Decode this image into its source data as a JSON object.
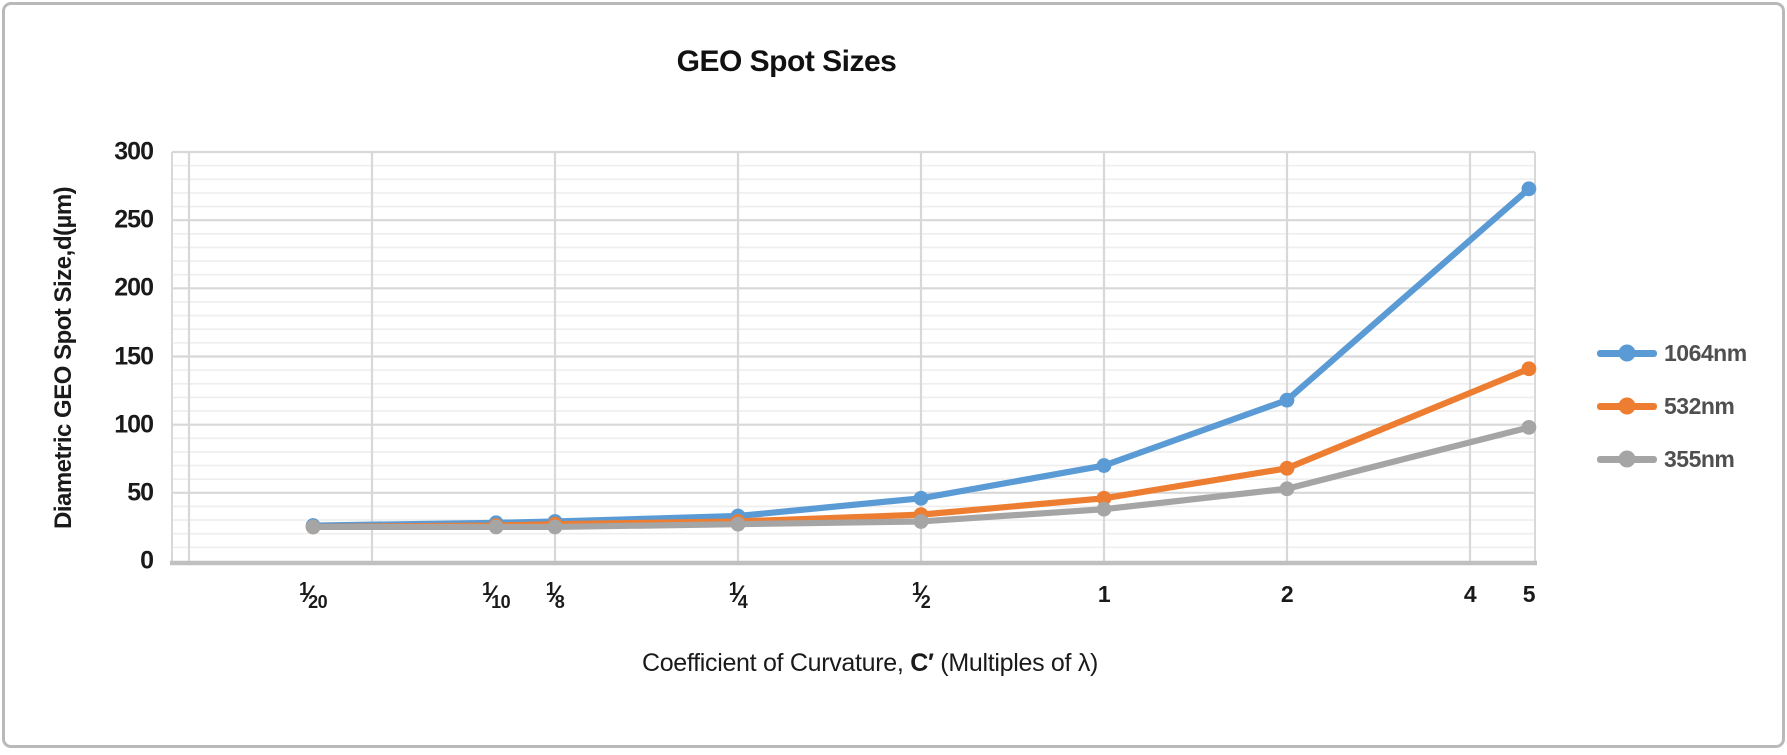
{
  "chart_data": {
    "type": "line",
    "title": "GEO Spot Sizes",
    "ylabel_parts": [
      {
        "text": "Diametric GEO Spot Size, ",
        "bold": false
      },
      {
        "text": "d",
        "bold": true
      },
      {
        "text": " (µm)",
        "bold": false
      }
    ],
    "xlabel_parts": [
      {
        "text": "Coefficient of Curvature, ",
        "bold": false
      },
      {
        "text": "C′",
        "bold": true
      },
      {
        "text": " (Multiples of λ)",
        "bold": false
      }
    ],
    "ylim": [
      0,
      300
    ],
    "y_major_step": 50,
    "y_minor_step": 10,
    "y_tick_labels": [
      "0",
      "50",
      "100",
      "150",
      "200",
      "250",
      "300"
    ],
    "x_scale": "log",
    "x_axis_range": [
      0.029,
      5.12
    ],
    "x_gridline_values": [
      0.03125,
      0.0625,
      0.125,
      0.25,
      0.5,
      1,
      2,
      4
    ],
    "x_ticks": [
      {
        "value": 0.05,
        "num": "1",
        "den": "20"
      },
      {
        "value": 0.1,
        "num": "1",
        "den": "10"
      },
      {
        "value": 0.125,
        "num": "1",
        "den": "8"
      },
      {
        "value": 0.25,
        "num": "1",
        "den": "4"
      },
      {
        "value": 0.5,
        "num": "1",
        "den": "2"
      },
      {
        "value": 1,
        "text": "1"
      },
      {
        "value": 2,
        "text": "2"
      },
      {
        "value": 4,
        "text": "4"
      },
      {
        "value": 5,
        "text": "5"
      }
    ],
    "x": [
      0.05,
      0.1,
      0.125,
      0.25,
      0.5,
      1,
      2,
      5
    ],
    "series": [
      {
        "name": "1064nm",
        "color": "#5B9BD5",
        "values": [
          26,
          28,
          29,
          33,
          46,
          70,
          118,
          273
        ]
      },
      {
        "name": "532nm",
        "color": "#ED7D31",
        "values": [
          25,
          26,
          27,
          29,
          34,
          46,
          68,
          141
        ]
      },
      {
        "name": "355nm",
        "color": "#A5A5A5",
        "values": [
          25,
          25,
          25,
          27,
          29,
          38,
          53,
          98
        ]
      }
    ],
    "legend_position": "right",
    "grid": true
  },
  "colors": {
    "grid_major": "#d8d8d8",
    "grid_minor": "#eeeeee",
    "axis_line": "#c0c0c0",
    "plot_border": "#d8d8d8",
    "text": "#1a1a1a",
    "legend_text": "#4f4f4f",
    "frame_border": "#b9b9b9"
  }
}
